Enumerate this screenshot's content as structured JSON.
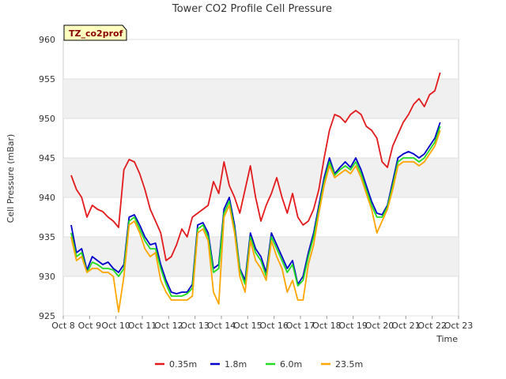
{
  "chart_data": {
    "type": "line",
    "title": "Tower CO2 Profile Cell Pressure",
    "tag": "TZ_co2prof",
    "xlabel": "Time",
    "ylabel": "Cell Pressure (mBar)",
    "xlim": [
      8,
      23
    ],
    "ylim": [
      925,
      960
    ],
    "x_ticks": [
      {
        "v": 8,
        "label": "Oct 8"
      },
      {
        "v": 9,
        "label": "Oct 9"
      },
      {
        "v": 10,
        "label": "Oct 10"
      },
      {
        "v": 11,
        "label": "Oct 11"
      },
      {
        "v": 12,
        "label": "Oct 12"
      },
      {
        "v": 13,
        "label": "Oct 13"
      },
      {
        "v": 14,
        "label": "Oct 14"
      },
      {
        "v": 15,
        "label": "Oct 15"
      },
      {
        "v": 16,
        "label": "Oct 16"
      },
      {
        "v": 17,
        "label": "Oct 17"
      },
      {
        "v": 18,
        "label": "Oct 18"
      },
      {
        "v": 19,
        "label": "Oct 19"
      },
      {
        "v": 20,
        "label": "Oct 20"
      },
      {
        "v": 21,
        "label": "Oct 21"
      },
      {
        "v": 22,
        "label": "Oct 22"
      },
      {
        "v": 23,
        "label": "Oct 23"
      }
    ],
    "y_ticks": [
      925,
      930,
      935,
      940,
      945,
      950,
      955,
      960
    ],
    "grid": "horizontal bands",
    "legend_position": "bottom-center",
    "x": [
      8.3,
      8.5,
      8.7,
      8.9,
      9.1,
      9.3,
      9.5,
      9.7,
      9.9,
      10.1,
      10.3,
      10.5,
      10.7,
      10.9,
      11.1,
      11.3,
      11.5,
      11.7,
      11.9,
      12.1,
      12.3,
      12.5,
      12.7,
      12.9,
      13.1,
      13.3,
      13.5,
      13.7,
      13.9,
      14.1,
      14.3,
      14.5,
      14.7,
      14.9,
      15.1,
      15.3,
      15.5,
      15.7,
      15.9,
      16.1,
      16.3,
      16.5,
      16.7,
      16.9,
      17.1,
      17.3,
      17.5,
      17.7,
      17.9,
      18.1,
      18.3,
      18.5,
      18.7,
      18.9,
      19.1,
      19.3,
      19.5,
      19.7,
      19.9,
      20.1,
      20.3,
      20.5,
      20.7,
      20.9,
      21.1,
      21.3,
      21.5,
      21.7,
      21.9,
      22.1,
      22.3
    ],
    "series": [
      {
        "name": "0.35m",
        "color": "#e31a1c",
        "values": [
          942.8,
          941.0,
          940.0,
          937.5,
          939.0,
          938.5,
          938.2,
          937.5,
          937.0,
          936.2,
          943.5,
          944.8,
          944.5,
          943.0,
          941.0,
          938.5,
          937.0,
          935.5,
          932.0,
          932.5,
          934.0,
          936.0,
          935.0,
          937.5,
          938.0,
          938.5,
          939.0,
          942.0,
          940.5,
          944.5,
          941.5,
          940.0,
          938.0,
          941.0,
          944.0,
          940.0,
          937.0,
          939.0,
          940.5,
          942.5,
          940.0,
          938.0,
          940.5,
          937.5,
          936.5,
          937.0,
          938.5,
          941.0,
          945.0,
          948.5,
          950.5,
          950.2,
          949.5,
          950.5,
          951.0,
          950.5,
          949.0,
          948.5,
          947.5,
          944.5,
          943.8,
          946.5,
          948.0,
          949.5,
          950.5,
          951.8,
          952.5,
          951.5,
          953.0,
          953.5,
          955.8
        ]
      },
      {
        "name": "1.8m",
        "color": "#0000cc",
        "values": [
          936.5,
          933.0,
          933.5,
          930.8,
          932.5,
          932.0,
          931.5,
          931.8,
          931.0,
          930.5,
          931.5,
          937.5,
          937.8,
          936.5,
          935.0,
          934.0,
          934.2,
          931.5,
          929.5,
          928.0,
          927.8,
          928.0,
          928.0,
          929.0,
          936.5,
          936.8,
          935.5,
          931.0,
          931.5,
          938.5,
          940.0,
          936.5,
          931.0,
          929.5,
          935.5,
          933.5,
          932.5,
          930.5,
          935.5,
          934.0,
          932.5,
          931.0,
          932.0,
          929.0,
          930.0,
          933.0,
          935.5,
          939.0,
          942.5,
          945.0,
          943.0,
          943.8,
          944.5,
          943.8,
          945.0,
          943.5,
          941.5,
          939.5,
          938.0,
          937.8,
          939.0,
          942.0,
          945.0,
          945.5,
          945.8,
          945.5,
          945.0,
          945.5,
          946.5,
          947.5,
          949.5
        ]
      },
      {
        "name": "6.0m",
        "color": "#22dd22",
        "values": [
          935.5,
          932.5,
          933.0,
          930.5,
          931.8,
          931.5,
          931.0,
          931.0,
          930.8,
          930.0,
          931.0,
          937.0,
          937.5,
          936.0,
          934.5,
          933.5,
          933.5,
          931.0,
          929.0,
          927.5,
          927.5,
          927.5,
          927.8,
          928.5,
          936.0,
          936.5,
          935.0,
          930.5,
          931.0,
          938.0,
          939.5,
          936.0,
          930.8,
          929.0,
          935.0,
          933.0,
          932.0,
          930.0,
          935.0,
          933.5,
          932.0,
          930.5,
          931.5,
          928.8,
          929.5,
          932.5,
          935.0,
          938.5,
          942.0,
          944.5,
          942.8,
          943.5,
          944.0,
          943.5,
          944.5,
          943.0,
          941.0,
          939.0,
          937.5,
          937.5,
          938.8,
          941.5,
          944.5,
          945.0,
          945.0,
          945.0,
          944.5,
          945.0,
          946.0,
          947.0,
          949.0
        ]
      },
      {
        "name": "23.5m",
        "color": "#ffa500",
        "values": [
          935.0,
          932.0,
          932.5,
          930.5,
          931.0,
          931.0,
          930.5,
          930.5,
          930.0,
          925.5,
          930.0,
          936.5,
          937.0,
          935.5,
          933.5,
          932.5,
          933.0,
          929.5,
          928.0,
          927.0,
          927.0,
          927.0,
          927.0,
          927.5,
          935.5,
          936.0,
          934.5,
          928.0,
          926.5,
          937.5,
          939.0,
          935.5,
          930.0,
          928.0,
          934.5,
          932.0,
          931.0,
          929.5,
          934.5,
          932.5,
          931.0,
          928.0,
          929.5,
          927.0,
          927.0,
          931.5,
          934.0,
          938.0,
          941.5,
          944.0,
          942.5,
          943.0,
          943.5,
          943.0,
          944.0,
          942.5,
          940.5,
          938.5,
          935.5,
          937.0,
          938.5,
          941.0,
          944.0,
          944.5,
          944.5,
          944.5,
          944.0,
          944.5,
          945.5,
          946.5,
          948.5
        ]
      }
    ]
  }
}
